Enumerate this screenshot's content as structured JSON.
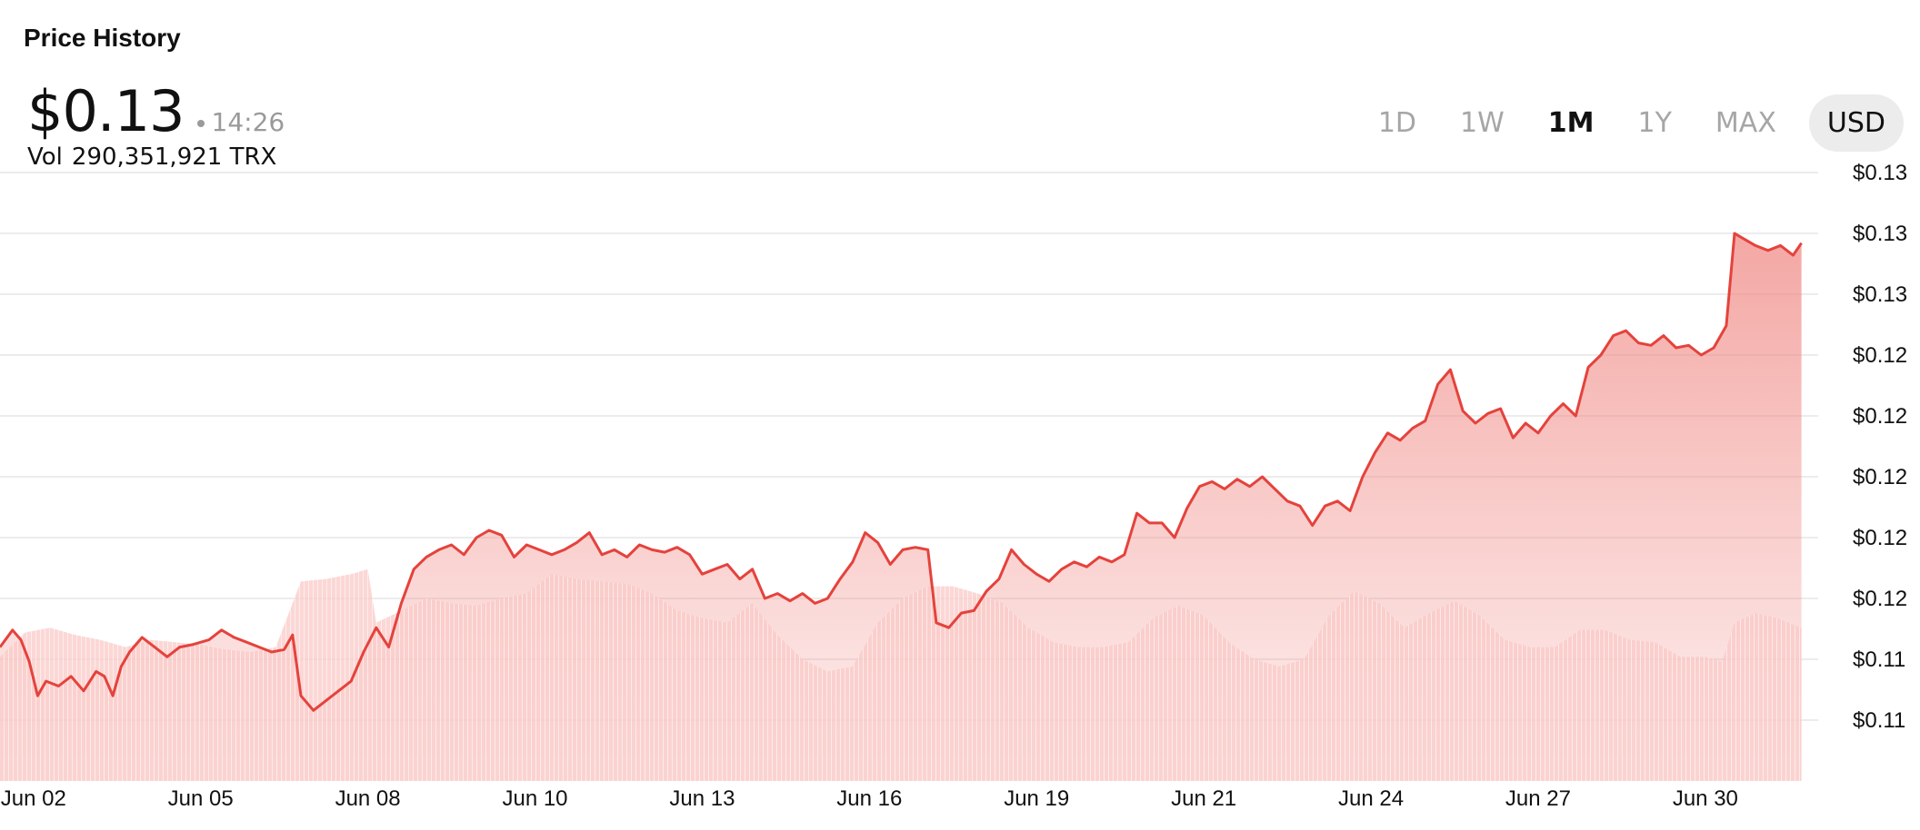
{
  "header": {
    "title": "Price History",
    "price": "$0.13",
    "time": "14:26",
    "volume_label": "Vol",
    "volume_value": "290,351,921 TRX"
  },
  "range_buttons": [
    {
      "label": "1D",
      "active": false
    },
    {
      "label": "1W",
      "active": false
    },
    {
      "label": "1M",
      "active": true
    },
    {
      "label": "1Y",
      "active": false
    },
    {
      "label": "MAX",
      "active": false
    }
  ],
  "currency": "USD",
  "colors": {
    "line": "#e5423c",
    "area_fill": "#f08a85",
    "volume_fill": "#f9c9c7",
    "grid": "#e6e6e6"
  },
  "chart_data": {
    "type": "line",
    "title": "",
    "xlabel": "",
    "ylabel": "",
    "x_ticks": [
      {
        "label": "Jun 02",
        "t": 0.8
      },
      {
        "label": "Jun 05",
        "t": 4.8
      },
      {
        "label": "Jun 08",
        "t": 8.8
      },
      {
        "label": "Jun 10",
        "t": 12.8
      },
      {
        "label": "Jun 13",
        "t": 16.8
      },
      {
        "label": "Jun 16",
        "t": 20.8
      },
      {
        "label": "Jun 19",
        "t": 24.8
      },
      {
        "label": "Jun 21",
        "t": 28.8
      },
      {
        "label": "Jun 24",
        "t": 32.8
      },
      {
        "label": "Jun 27",
        "t": 36.8
      },
      {
        "label": "Jun 30",
        "t": 40.8
      }
    ],
    "x_unit": "days",
    "y_ticks": [
      {
        "label": "$0.13",
        "v": 0.1325
      },
      {
        "label": "$0.13",
        "v": 0.13
      },
      {
        "label": "$0.13",
        "v": 0.1275
      },
      {
        "label": "$0.12",
        "v": 0.125
      },
      {
        "label": "$0.12",
        "v": 0.1225
      },
      {
        "label": "$0.12",
        "v": 0.12
      },
      {
        "label": "$0.12",
        "v": 0.1175
      },
      {
        "label": "$0.12",
        "v": 0.115
      },
      {
        "label": "$0.11",
        "v": 0.1125
      },
      {
        "label": "$0.11",
        "v": 0.11
      }
    ],
    "ylim": [
      0.1075,
      0.1325
    ],
    "xlim": [
      0,
      43.5
    ],
    "grid": true,
    "series": [
      {
        "type": "line",
        "points": [
          [
            0,
            0.113
          ],
          [
            0.3,
            0.1137
          ],
          [
            0.5,
            0.1133
          ],
          [
            0.7,
            0.1124
          ],
          [
            0.9,
            0.111
          ],
          [
            1.1,
            0.1116
          ],
          [
            1.4,
            0.1114
          ],
          [
            1.7,
            0.1118
          ],
          [
            2.0,
            0.1112
          ],
          [
            2.3,
            0.112
          ],
          [
            2.5,
            0.1118
          ],
          [
            2.7,
            0.111
          ],
          [
            2.9,
            0.1122
          ],
          [
            3.1,
            0.1128
          ],
          [
            3.4,
            0.1134
          ],
          [
            3.7,
            0.113
          ],
          [
            4.0,
            0.1126
          ],
          [
            4.3,
            0.113
          ],
          [
            4.6,
            0.1131
          ],
          [
            5.0,
            0.1133
          ],
          [
            5.3,
            0.1137
          ],
          [
            5.6,
            0.1134
          ],
          [
            5.9,
            0.1132
          ],
          [
            6.2,
            0.113
          ],
          [
            6.5,
            0.1128
          ],
          [
            6.8,
            0.1129
          ],
          [
            7.0,
            0.1135
          ],
          [
            7.2,
            0.111
          ],
          [
            7.5,
            0.1104
          ],
          [
            7.8,
            0.1108
          ],
          [
            8.1,
            0.1112
          ],
          [
            8.4,
            0.1116
          ],
          [
            8.7,
            0.1128
          ],
          [
            9.0,
            0.1138
          ],
          [
            9.3,
            0.113
          ],
          [
            9.6,
            0.1148
          ],
          [
            9.9,
            0.1162
          ],
          [
            10.2,
            0.1167
          ],
          [
            10.5,
            0.117
          ],
          [
            10.8,
            0.1172
          ],
          [
            11.1,
            0.1168
          ],
          [
            11.4,
            0.1175
          ],
          [
            11.7,
            0.1178
          ],
          [
            12.0,
            0.1176
          ],
          [
            12.3,
            0.1167
          ],
          [
            12.6,
            0.1172
          ],
          [
            12.9,
            0.117
          ],
          [
            13.2,
            0.1168
          ],
          [
            13.5,
            0.117
          ],
          [
            13.8,
            0.1173
          ],
          [
            14.1,
            0.1177
          ],
          [
            14.4,
            0.1168
          ],
          [
            14.7,
            0.117
          ],
          [
            15.0,
            0.1167
          ],
          [
            15.3,
            0.1172
          ],
          [
            15.6,
            0.117
          ],
          [
            15.9,
            0.1169
          ],
          [
            16.2,
            0.1171
          ],
          [
            16.5,
            0.1168
          ],
          [
            16.8,
            0.116
          ],
          [
            17.1,
            0.1162
          ],
          [
            17.4,
            0.1164
          ],
          [
            17.7,
            0.1158
          ],
          [
            18.0,
            0.1162
          ],
          [
            18.3,
            0.115
          ],
          [
            18.6,
            0.1152
          ],
          [
            18.9,
            0.1149
          ],
          [
            19.2,
            0.1152
          ],
          [
            19.5,
            0.1148
          ],
          [
            19.8,
            0.115
          ],
          [
            20.1,
            0.1158
          ],
          [
            20.4,
            0.1165
          ],
          [
            20.7,
            0.1177
          ],
          [
            21.0,
            0.1173
          ],
          [
            21.3,
            0.1164
          ],
          [
            21.6,
            0.117
          ],
          [
            21.9,
            0.1171
          ],
          [
            22.2,
            0.117
          ],
          [
            22.4,
            0.114
          ],
          [
            22.7,
            0.1138
          ],
          [
            23.0,
            0.1144
          ],
          [
            23.3,
            0.1145
          ],
          [
            23.6,
            0.1153
          ],
          [
            23.9,
            0.1158
          ],
          [
            24.2,
            0.117
          ],
          [
            24.5,
            0.1164
          ],
          [
            24.8,
            0.116
          ],
          [
            25.1,
            0.1157
          ],
          [
            25.4,
            0.1162
          ],
          [
            25.7,
            0.1165
          ],
          [
            26.0,
            0.1163
          ],
          [
            26.3,
            0.1167
          ],
          [
            26.6,
            0.1165
          ],
          [
            26.9,
            0.1168
          ],
          [
            27.2,
            0.1185
          ],
          [
            27.5,
            0.1181
          ],
          [
            27.8,
            0.1181
          ],
          [
            28.1,
            0.1175
          ],
          [
            28.4,
            0.1187
          ],
          [
            28.7,
            0.1196
          ],
          [
            29.0,
            0.1198
          ],
          [
            29.3,
            0.1195
          ],
          [
            29.6,
            0.1199
          ],
          [
            29.9,
            0.1196
          ],
          [
            30.2,
            0.12
          ],
          [
            30.5,
            0.1195
          ],
          [
            30.8,
            0.119
          ],
          [
            31.1,
            0.1188
          ],
          [
            31.4,
            0.118
          ],
          [
            31.7,
            0.1188
          ],
          [
            32.0,
            0.119
          ],
          [
            32.3,
            0.1186
          ],
          [
            32.6,
            0.12
          ],
          [
            32.9,
            0.121
          ],
          [
            33.2,
            0.1218
          ],
          [
            33.5,
            0.1215
          ],
          [
            33.8,
            0.122
          ],
          [
            34.1,
            0.1223
          ],
          [
            34.4,
            0.1238
          ],
          [
            34.7,
            0.1244
          ],
          [
            35.0,
            0.1227
          ],
          [
            35.3,
            0.1222
          ],
          [
            35.6,
            0.1226
          ],
          [
            35.9,
            0.1228
          ],
          [
            36.2,
            0.1216
          ],
          [
            36.5,
            0.1222
          ],
          [
            36.8,
            0.1218
          ],
          [
            37.1,
            0.1225
          ],
          [
            37.4,
            0.123
          ],
          [
            37.7,
            0.1225
          ],
          [
            38.0,
            0.1245
          ],
          [
            38.3,
            0.125
          ],
          [
            38.6,
            0.1258
          ],
          [
            38.9,
            0.126
          ],
          [
            39.2,
            0.1255
          ],
          [
            39.5,
            0.1254
          ],
          [
            39.8,
            0.1258
          ],
          [
            40.1,
            0.1253
          ],
          [
            40.4,
            0.1254
          ],
          [
            40.7,
            0.125
          ],
          [
            41.0,
            0.1253
          ],
          [
            41.3,
            0.1262
          ],
          [
            41.5,
            0.13
          ],
          [
            41.7,
            0.1298
          ],
          [
            42.0,
            0.1295
          ],
          [
            42.3,
            0.1293
          ],
          [
            42.6,
            0.1295
          ],
          [
            42.9,
            0.1291
          ],
          [
            43.1,
            0.1296
          ]
        ]
      },
      {
        "type": "area",
        "name": "",
        "points": [
          [
            0,
            0.1126
          ],
          [
            0.6,
            0.1136
          ],
          [
            1.2,
            0.1138
          ],
          [
            1.8,
            0.1135
          ],
          [
            2.4,
            0.1133
          ],
          [
            3.0,
            0.113
          ],
          [
            3.6,
            0.1133
          ],
          [
            4.2,
            0.1132
          ],
          [
            4.8,
            0.1131
          ],
          [
            5.4,
            0.1129
          ],
          [
            6.0,
            0.1128
          ],
          [
            6.6,
            0.113
          ],
          [
            7.2,
            0.1157
          ],
          [
            7.8,
            0.1158
          ],
          [
            8.4,
            0.116
          ],
          [
            8.8,
            0.1162
          ],
          [
            9.0,
            0.114
          ],
          [
            9.6,
            0.1145
          ],
          [
            10.2,
            0.115
          ],
          [
            10.8,
            0.1148
          ],
          [
            11.4,
            0.1147
          ],
          [
            12.0,
            0.115
          ],
          [
            12.6,
            0.1152
          ],
          [
            13.2,
            0.116
          ],
          [
            13.8,
            0.1158
          ],
          [
            14.4,
            0.1157
          ],
          [
            15.0,
            0.1156
          ],
          [
            15.6,
            0.1152
          ],
          [
            16.2,
            0.1145
          ],
          [
            16.8,
            0.1142
          ],
          [
            17.4,
            0.114
          ],
          [
            18.0,
            0.1148
          ],
          [
            18.6,
            0.1135
          ],
          [
            19.2,
            0.1125
          ],
          [
            19.8,
            0.112
          ],
          [
            20.4,
            0.1122
          ],
          [
            21.0,
            0.114
          ],
          [
            21.6,
            0.115
          ],
          [
            22.2,
            0.1155
          ],
          [
            22.8,
            0.1155
          ],
          [
            23.4,
            0.1152
          ],
          [
            24.0,
            0.1148
          ],
          [
            24.6,
            0.1138
          ],
          [
            25.2,
            0.1132
          ],
          [
            25.8,
            0.113
          ],
          [
            26.4,
            0.113
          ],
          [
            27.0,
            0.1132
          ],
          [
            27.6,
            0.1142
          ],
          [
            28.2,
            0.1147
          ],
          [
            28.8,
            0.1143
          ],
          [
            29.4,
            0.1132
          ],
          [
            30.0,
            0.1125
          ],
          [
            30.6,
            0.1122
          ],
          [
            31.2,
            0.1125
          ],
          [
            31.8,
            0.1143
          ],
          [
            32.4,
            0.1153
          ],
          [
            33.0,
            0.1148
          ],
          [
            33.6,
            0.1138
          ],
          [
            34.2,
            0.1144
          ],
          [
            34.8,
            0.1149
          ],
          [
            35.4,
            0.1143
          ],
          [
            36.0,
            0.1133
          ],
          [
            36.6,
            0.113
          ],
          [
            37.2,
            0.113
          ],
          [
            37.8,
            0.1137
          ],
          [
            38.4,
            0.1137
          ],
          [
            39.0,
            0.1133
          ],
          [
            39.6,
            0.1132
          ],
          [
            40.2,
            0.1126
          ],
          [
            40.8,
            0.1126
          ],
          [
            41.2,
            0.1124
          ],
          [
            41.5,
            0.114
          ],
          [
            42.0,
            0.1144
          ],
          [
            42.5,
            0.1142
          ],
          [
            43.1,
            0.1138
          ]
        ]
      }
    ]
  }
}
